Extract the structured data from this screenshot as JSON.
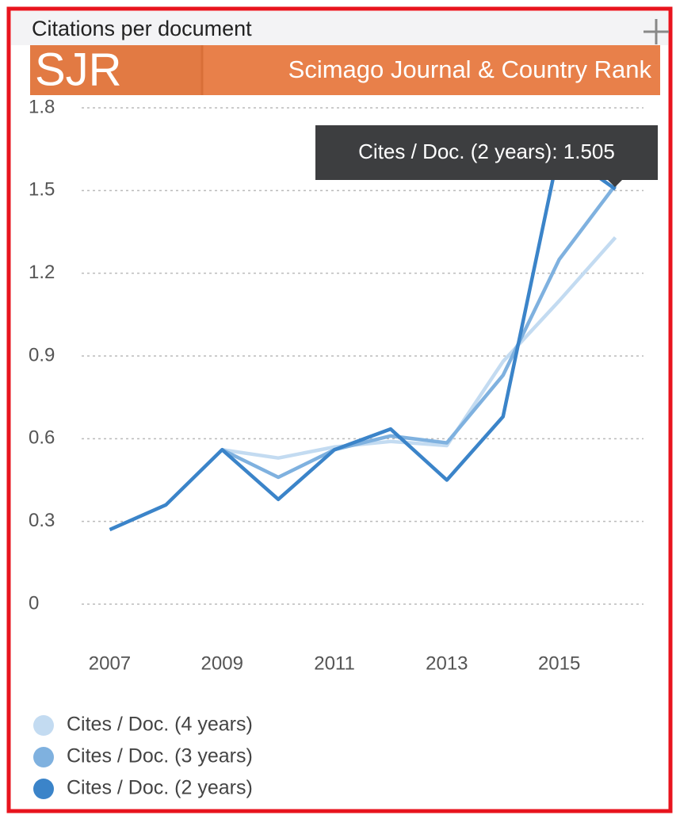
{
  "chart_data": {
    "type": "line",
    "title": "Citations per document",
    "brand": "SJR",
    "brand_subtitle": "Scimago Journal & Country Rank",
    "tooltip": "Cites / Doc. (2 years): 1.505",
    "x": [
      2007,
      2008,
      2009,
      2010,
      2011,
      2012,
      2013,
      2014,
      2015,
      2016
    ],
    "xlim": [
      2006.5,
      2016.5
    ],
    "xticks": [
      2007,
      2009,
      2011,
      2013,
      2015
    ],
    "ylim": [
      0,
      1.8
    ],
    "yticks": [
      0,
      0.3,
      0.6,
      0.9,
      1.2,
      1.5,
      1.8
    ],
    "grid": true,
    "legend": "bottom-left",
    "series": [
      {
        "name": "Cites / Doc. (4 years)",
        "color": "#c3dbf1",
        "values": [
          null,
          null,
          0.56,
          0.53,
          0.57,
          0.59,
          0.575,
          0.88,
          1.1,
          1.33
        ]
      },
      {
        "name": "Cites / Doc. (3 years)",
        "color": "#7fb1df",
        "values": [
          null,
          null,
          0.56,
          0.46,
          0.56,
          0.61,
          0.585,
          0.83,
          1.25,
          1.52
        ]
      },
      {
        "name": "Cites / Doc. (2 years)",
        "color": "#3b84c9",
        "values": [
          0.27,
          0.36,
          0.56,
          0.38,
          0.56,
          0.635,
          0.45,
          0.68,
          1.65,
          1.505
        ]
      }
    ]
  }
}
